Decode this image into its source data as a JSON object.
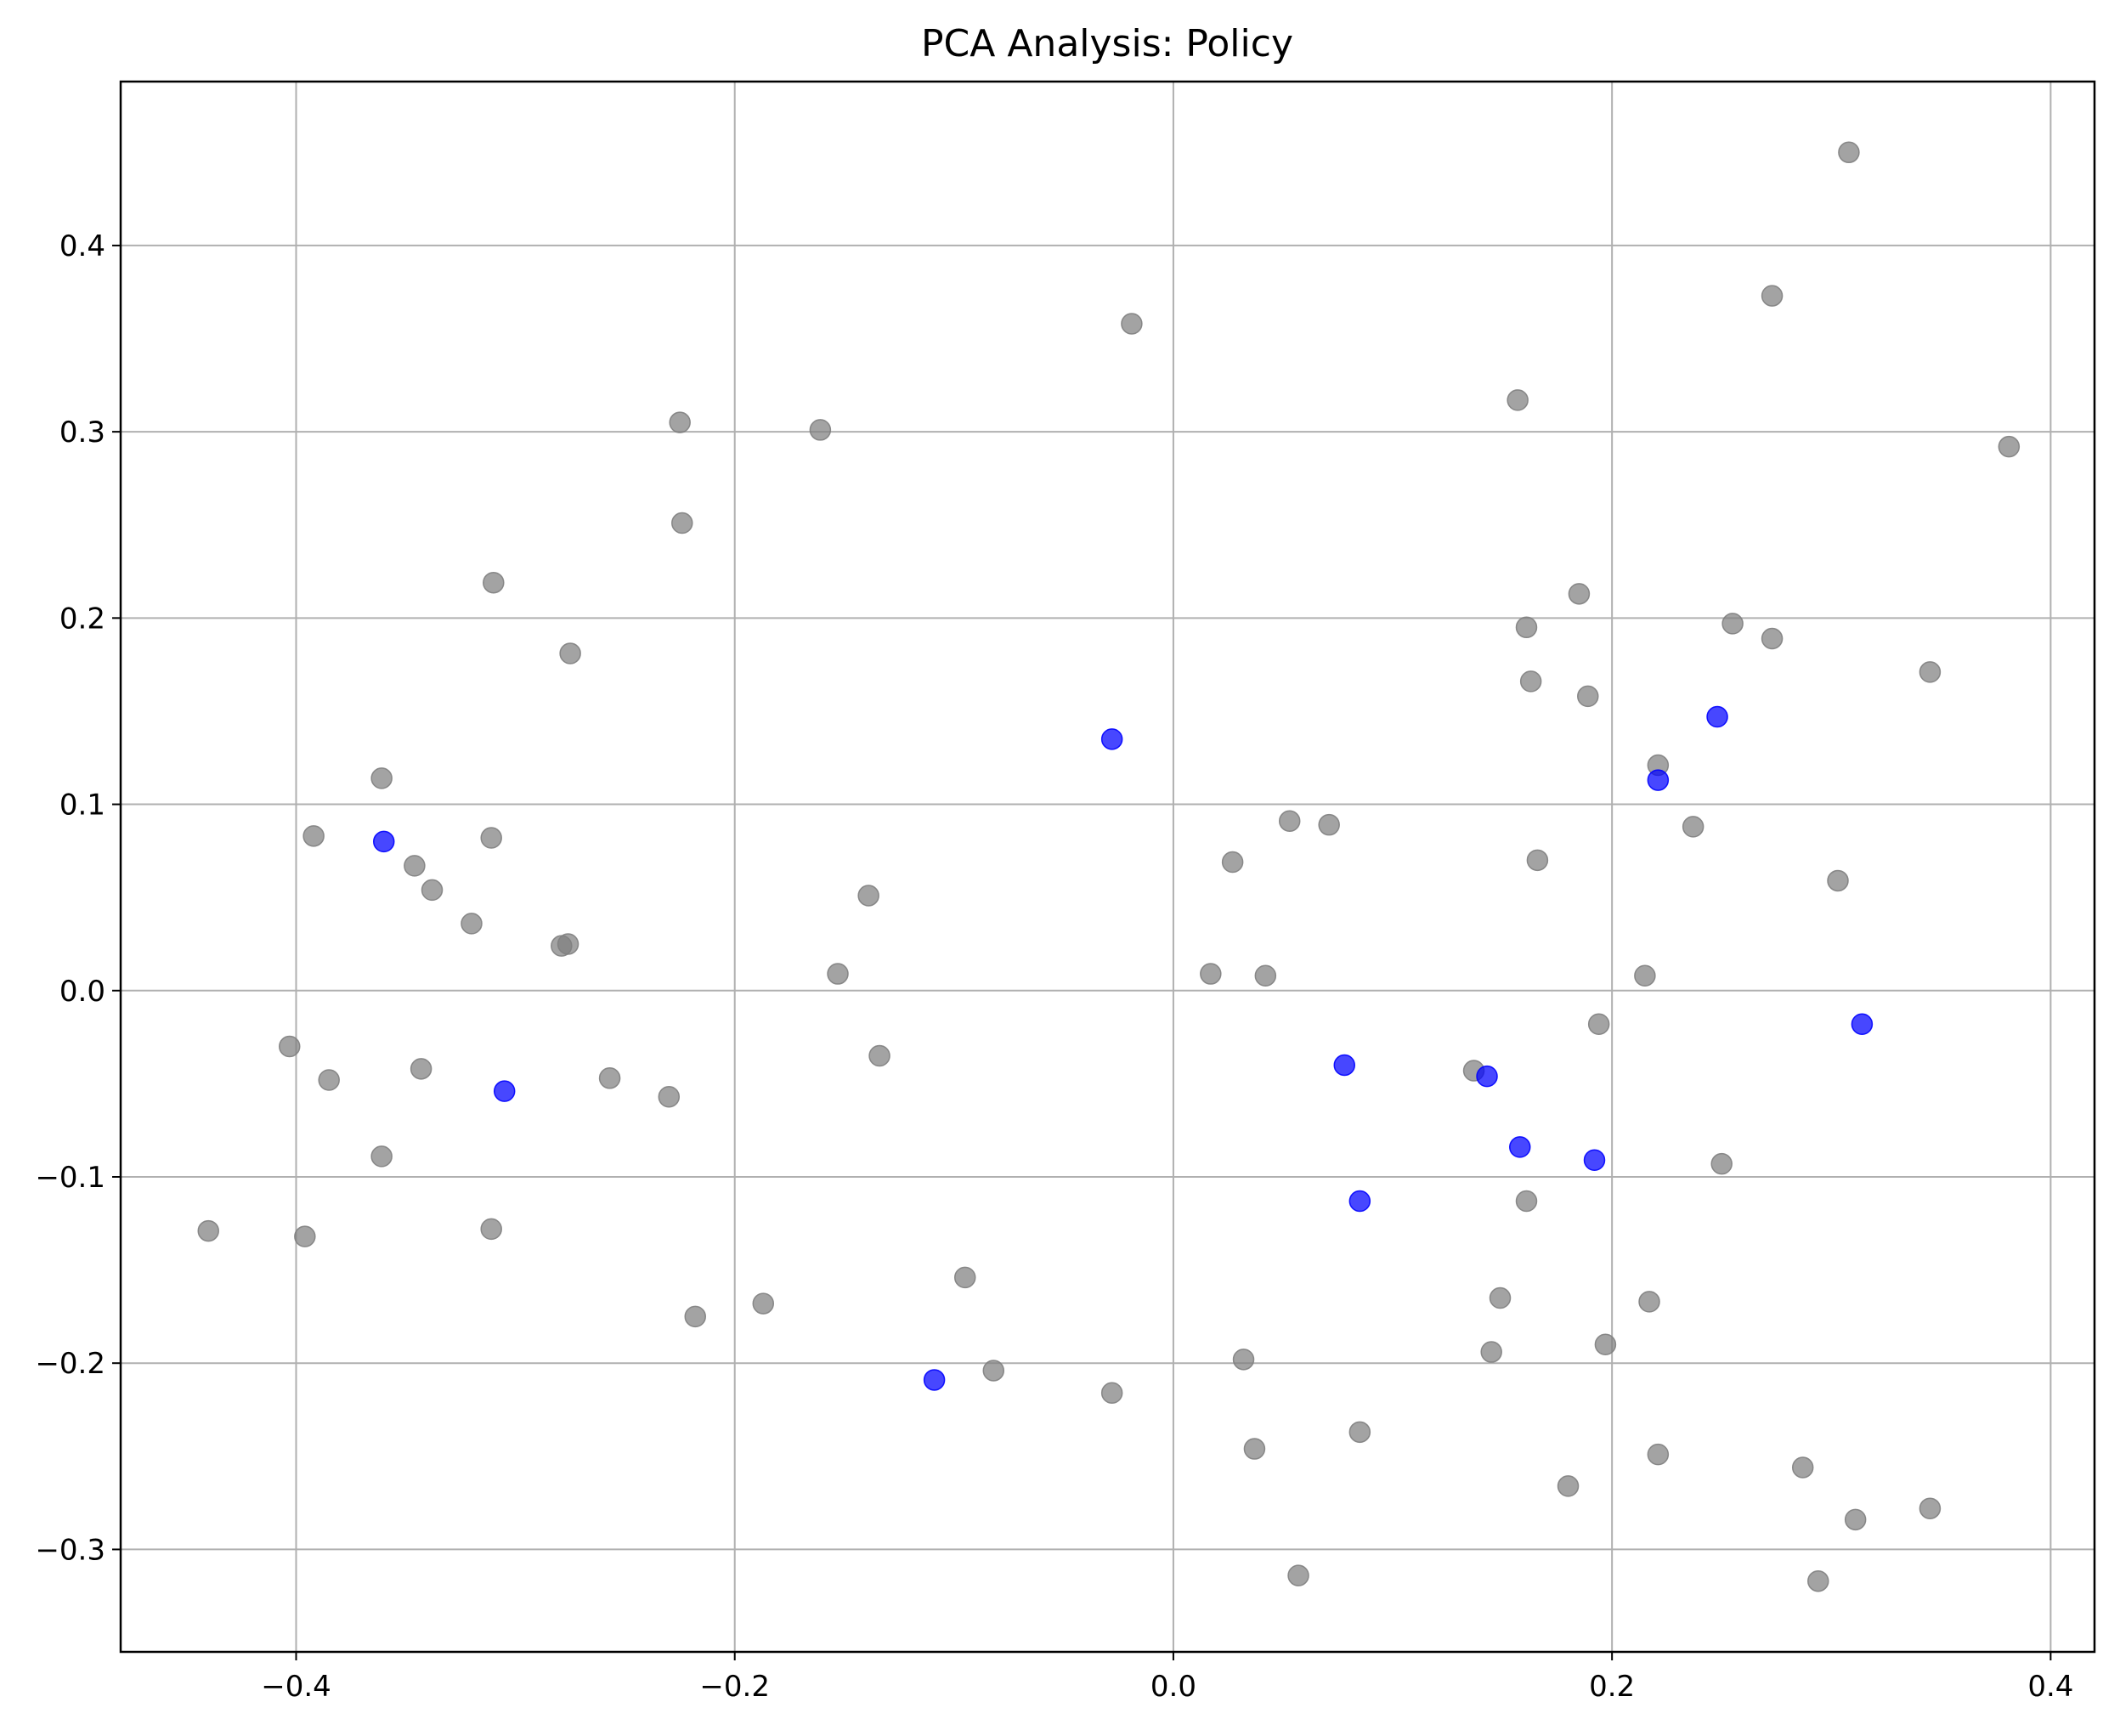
{
  "chart_data": {
    "type": "scatter",
    "title": "PCA Analysis: Policy",
    "xlabel": "",
    "ylabel": "",
    "xlim": [
      -0.48,
      0.42
    ],
    "ylim": [
      -0.355,
      0.488
    ],
    "grid": true,
    "x_ticks": [
      -0.4,
      -0.2,
      0.0,
      0.2,
      0.4
    ],
    "x_tick_labels": [
      "−0.4",
      "−0.2",
      "0.0",
      "0.2",
      "0.4"
    ],
    "y_ticks": [
      -0.3,
      -0.2,
      -0.1,
      0.0,
      0.1,
      0.2,
      0.3,
      0.4
    ],
    "y_tick_labels": [
      "−0.3",
      "−0.2",
      "−0.1",
      "0.0",
      "0.1",
      "0.2",
      "0.3",
      "0.4"
    ],
    "series": [
      {
        "color": "#808080",
        "points": [
          [
            0.308,
            0.45
          ],
          [
            0.273,
            0.373
          ],
          [
            -0.019,
            0.358
          ],
          [
            0.157,
            0.317
          ],
          [
            0.381,
            0.292
          ],
          [
            -0.225,
            0.305
          ],
          [
            -0.161,
            0.301
          ],
          [
            -0.224,
            0.251
          ],
          [
            -0.31,
            0.219
          ],
          [
            -0.275,
            0.181
          ],
          [
            0.185,
            0.213
          ],
          [
            0.161,
            0.195
          ],
          [
            0.255,
            0.197
          ],
          [
            0.273,
            0.189
          ],
          [
            0.345,
            0.171
          ],
          [
            0.163,
            0.166
          ],
          [
            0.189,
            0.158
          ],
          [
            0.221,
            0.121
          ],
          [
            -0.361,
            0.114
          ],
          [
            -0.392,
            0.083
          ],
          [
            -0.311,
            0.082
          ],
          [
            0.053,
            0.091
          ],
          [
            0.071,
            0.089
          ],
          [
            0.237,
            0.088
          ],
          [
            0.027,
            0.069
          ],
          [
            0.166,
            0.07
          ],
          [
            -0.346,
            0.067
          ],
          [
            -0.338,
            0.054
          ],
          [
            -0.139,
            0.051
          ],
          [
            0.303,
            0.059
          ],
          [
            -0.32,
            0.036
          ],
          [
            -0.279,
            0.024
          ],
          [
            -0.276,
            0.025
          ],
          [
            -0.153,
            0.009
          ],
          [
            0.017,
            0.009
          ],
          [
            0.042,
            0.008
          ],
          [
            0.215,
            0.008
          ],
          [
            0.194,
            -0.018
          ],
          [
            -0.403,
            -0.03
          ],
          [
            -0.134,
            -0.035
          ],
          [
            -0.385,
            -0.048
          ],
          [
            -0.343,
            -0.042
          ],
          [
            -0.257,
            -0.047
          ],
          [
            0.137,
            -0.043
          ],
          [
            -0.23,
            -0.057
          ],
          [
            -0.361,
            -0.089
          ],
          [
            0.25,
            -0.093
          ],
          [
            0.161,
            -0.113
          ],
          [
            -0.44,
            -0.129
          ],
          [
            -0.396,
            -0.132
          ],
          [
            -0.311,
            -0.128
          ],
          [
            -0.095,
            -0.154
          ],
          [
            -0.218,
            -0.175
          ],
          [
            -0.187,
            -0.168
          ],
          [
            0.149,
            -0.165
          ],
          [
            0.217,
            -0.167
          ],
          [
            0.145,
            -0.194
          ],
          [
            0.197,
            -0.19
          ],
          [
            0.032,
            -0.198
          ],
          [
            -0.082,
            -0.204
          ],
          [
            -0.028,
            -0.216
          ],
          [
            0.085,
            -0.237
          ],
          [
            0.037,
            -0.246
          ],
          [
            0.221,
            -0.249
          ],
          [
            0.287,
            -0.256
          ],
          [
            0.18,
            -0.266
          ],
          [
            0.311,
            -0.284
          ],
          [
            0.345,
            -0.278
          ],
          [
            0.057,
            -0.314
          ],
          [
            0.294,
            -0.317
          ]
        ]
      },
      {
        "color": "#0000ff",
        "points": [
          [
            0.248,
            0.147
          ],
          [
            -0.028,
            0.135
          ],
          [
            0.221,
            0.113
          ],
          [
            -0.36,
            0.08
          ],
          [
            0.314,
            -0.018
          ],
          [
            0.078,
            -0.04
          ],
          [
            0.143,
            -0.046
          ],
          [
            -0.305,
            -0.054
          ],
          [
            0.158,
            -0.084
          ],
          [
            0.192,
            -0.091
          ],
          [
            0.085,
            -0.113
          ],
          [
            -0.109,
            -0.209
          ]
        ]
      }
    ]
  }
}
